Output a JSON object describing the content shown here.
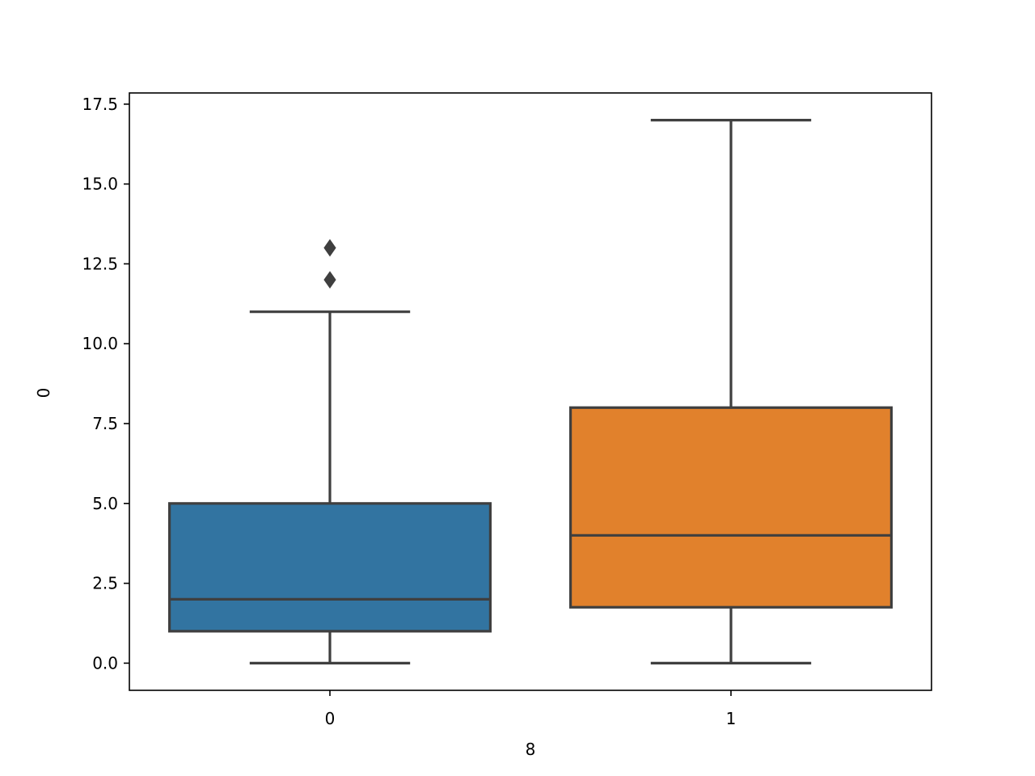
{
  "chart_data": {
    "type": "box",
    "title": "",
    "xlabel": "8",
    "ylabel": "0",
    "ylim": [
      -0.85,
      17.85
    ],
    "yticks": [
      "0.0",
      "2.5",
      "5.0",
      "7.5",
      "10.0",
      "12.5",
      "15.0",
      "17.5"
    ],
    "categories": [
      "0",
      "1"
    ],
    "boxes": [
      {
        "category": "0",
        "whisker_low": 0,
        "q1": 1,
        "median": 2,
        "q3": 5,
        "whisker_high": 11,
        "outliers": [
          12,
          13
        ],
        "color": "#3274a1"
      },
      {
        "category": "1",
        "whisker_low": 0,
        "q1": 1.75,
        "median": 4,
        "q3": 8,
        "whisker_high": 17,
        "outliers": [],
        "color": "#e1812c"
      }
    ],
    "line_color": "#3f3f3f",
    "grid": false,
    "legend": "none"
  }
}
